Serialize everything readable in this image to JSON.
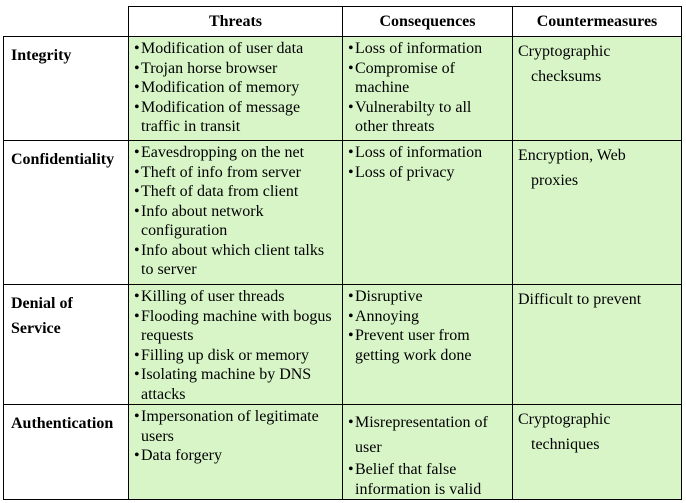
{
  "headers": [
    "Threats",
    "Consequences",
    "Countermeasures"
  ],
  "rows": [
    {
      "category": "Integrity",
      "threats": [
        "Modification of user data",
        "Trojan horse browser",
        "Modification of memory",
        "Modification of message traffic in transit"
      ],
      "consequences": [
        "Loss of information",
        "Compromise of machine",
        "Vulnerabilty to all other threats"
      ],
      "countermeasures": [
        "Cryptographic",
        "checksums"
      ]
    },
    {
      "category": "Confidentiality",
      "threats": [
        "Eavesdropping on the net",
        "Theft of info from server",
        "Theft of data from client",
        "Info about network configuration",
        "Info about which client talks to server"
      ],
      "consequences": [
        "Loss of information",
        "Loss of privacy"
      ],
      "countermeasures": [
        "Encryption, Web",
        "proxies"
      ]
    },
    {
      "category": "Denial of Service",
      "threats": [
        "Killing of user threads",
        "Flooding machine with bogus requests",
        "Filling up disk or memory",
        "Isolating machine by DNS attacks"
      ],
      "consequences": [
        "Disruptive",
        "Annoying",
        "Prevent user from getting work done"
      ],
      "countermeasures": [
        "Difficult to prevent"
      ]
    },
    {
      "category": "Authentication",
      "threats": [
        "Impersonation of legitimate users",
        "Data forgery"
      ],
      "consequences": [
        "Misrepresentation of user",
        "Belief that false information is valid"
      ],
      "countermeasures": [
        "Cryptographic",
        "techniques"
      ]
    }
  ]
}
